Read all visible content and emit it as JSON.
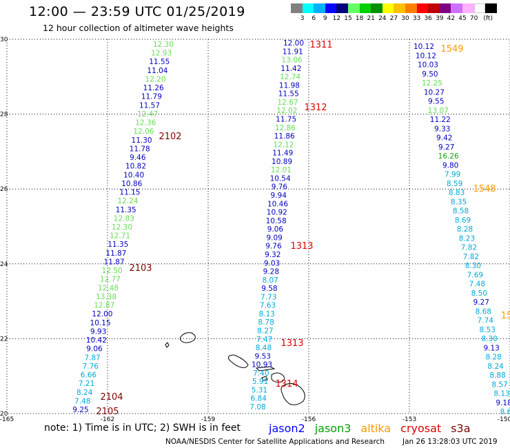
{
  "title": "12:00 — 23:59 UTC 01/25/2019",
  "subtitle": "12 hour collection of altimeter wave heights",
  "colorbar": {
    "colors": [
      "#808080",
      "#00ffff",
      "#00b0ff",
      "#0000ff",
      "#000080",
      "#66ff66",
      "#00d000",
      "#009000",
      "#ffff00",
      "#ffc000",
      "#ff8000",
      "#ff0000",
      "#c00000",
      "#800080",
      "#d070ff",
      "#ffb0ff",
      "#ffffff",
      "#000000"
    ],
    "labels": [
      "3",
      "6",
      "9",
      "12",
      "15",
      "18",
      "21",
      "24",
      "27",
      "30",
      "33",
      "36",
      "39",
      "42",
      "45",
      "70",
      "(ft)"
    ]
  },
  "axes": {
    "lon_ticks": [
      "-165",
      "-162",
      "-159",
      "-156",
      "-153",
      "-150"
    ],
    "lat_ticks": [
      "30",
      "28",
      "26",
      "24",
      "22",
      "20"
    ]
  },
  "level_colors": {
    "c1": "#00a8d8",
    "c2": "#0000c0",
    "c3": "#66dd55",
    "c4": "#10a010"
  },
  "tracks": [
    {
      "points": [
        [
          "12.30",
          "c3"
        ],
        [
          "12.93",
          "c3"
        ],
        [
          "11.55",
          "c2"
        ],
        [
          "11.04",
          "c2"
        ],
        [
          "12.20",
          "c3"
        ],
        [
          "11.26",
          "c2"
        ],
        [
          "11.79",
          "c2"
        ],
        [
          "11.57",
          "c2"
        ],
        [
          "12.47",
          "c3"
        ],
        [
          "12.36",
          "c3"
        ],
        [
          "12.06",
          "c3"
        ],
        [
          "11.30",
          "c2"
        ],
        [
          "11.78",
          "c2"
        ],
        [
          "9.46",
          "c2"
        ],
        [
          "10.82",
          "c2"
        ],
        [
          "10.40",
          "c2"
        ],
        [
          "10.86",
          "c2"
        ],
        [
          "11.15",
          "c2"
        ],
        [
          "12.24",
          "c3"
        ],
        [
          "11.35",
          "c2"
        ],
        [
          "12.83",
          "c3"
        ],
        [
          "12.30",
          "c3"
        ],
        [
          "12.71",
          "c3"
        ],
        [
          "11.35",
          "c2"
        ],
        [
          "11.87",
          "c2"
        ],
        [
          "11.87",
          "c2"
        ],
        [
          "12.50",
          "c3"
        ],
        [
          "12.77",
          "c3"
        ],
        [
          "12.48",
          "c3"
        ],
        [
          "13.38",
          "c3"
        ],
        [
          "12.87",
          "c3"
        ],
        [
          "12.00",
          "c2"
        ],
        [
          "10.15",
          "c2"
        ],
        [
          "9.93",
          "c2"
        ],
        [
          "10.42",
          "c2"
        ],
        [
          "9.06",
          "c2"
        ],
        [
          "7.87",
          "c1"
        ],
        [
          "7.76",
          "c1"
        ],
        [
          "6.66",
          "c1"
        ],
        [
          "7.21",
          "c1"
        ],
        [
          "8.24",
          "c1"
        ],
        [
          "7.48",
          "c1"
        ],
        [
          "9.25",
          "c2"
        ]
      ]
    },
    {
      "points": [
        [
          "12.00",
          "c2"
        ],
        [
          "11.91",
          "c2"
        ],
        [
          "13.06",
          "c3"
        ],
        [
          "11.42",
          "c2"
        ],
        [
          "12.74",
          "c3"
        ],
        [
          "11.98",
          "c2"
        ],
        [
          "11.55",
          "c2"
        ],
        [
          "12.67",
          "c3"
        ],
        [
          "12.02",
          "c3"
        ],
        [
          "11.75",
          "c2"
        ],
        [
          "12.86",
          "c3"
        ],
        [
          "11.86",
          "c2"
        ],
        [
          "12.12",
          "c3"
        ],
        [
          "11.49",
          "c2"
        ],
        [
          "10.89",
          "c2"
        ],
        [
          "12.01",
          "c3"
        ],
        [
          "10.54",
          "c2"
        ],
        [
          "9.76",
          "c2"
        ],
        [
          "9.94",
          "c2"
        ],
        [
          "10.46",
          "c2"
        ],
        [
          "10.92",
          "c2"
        ],
        [
          "10.58",
          "c2"
        ],
        [
          "9.06",
          "c2"
        ],
        [
          "9.09",
          "c2"
        ],
        [
          "9.76",
          "c2"
        ],
        [
          "9.32",
          "c2"
        ],
        [
          "9.03",
          "c2"
        ],
        [
          "9.28",
          "c2"
        ],
        [
          "8.07",
          "c1"
        ],
        [
          "9.58",
          "c2"
        ],
        [
          "7.73",
          "c1"
        ],
        [
          "7.63",
          "c1"
        ],
        [
          "8.13",
          "c1"
        ],
        [
          "8.78",
          "c1"
        ],
        [
          "8.27",
          "c1"
        ],
        [
          "7.47",
          "c1"
        ],
        [
          "8.48",
          "c1"
        ],
        [
          "9.53",
          "c2"
        ],
        [
          "10.93",
          "c2"
        ],
        [
          "7.40",
          "c1"
        ],
        [
          "5.91",
          "c1"
        ],
        [
          "5.31",
          "c1"
        ],
        [
          "6.84",
          "c1"
        ],
        [
          "7.08",
          "c1"
        ]
      ]
    },
    {
      "points": [
        [
          "10.12",
          "c2"
        ],
        [
          "10.12",
          "c2"
        ],
        [
          "10.03",
          "c2"
        ],
        [
          "9.50",
          "c2"
        ],
        [
          "12.25",
          "c3"
        ],
        [
          "10.27",
          "c2"
        ],
        [
          "9.55",
          "c2"
        ],
        [
          "13.07",
          "c3"
        ],
        [
          "11.22",
          "c2"
        ],
        [
          "9.33",
          "c2"
        ],
        [
          "9.42",
          "c2"
        ],
        [
          "9.27",
          "c2"
        ],
        [
          "16.26",
          "c4"
        ],
        [
          "9.80",
          "c2"
        ],
        [
          "7.99",
          "c1"
        ],
        [
          "8.59",
          "c1"
        ],
        [
          "8.83",
          "c1"
        ],
        [
          "8.35",
          "c1"
        ],
        [
          "8.58",
          "c1"
        ],
        [
          "8.69",
          "c1"
        ],
        [
          "8.28",
          "c1"
        ],
        [
          "8.23",
          "c1"
        ],
        [
          "7.82",
          "c1"
        ],
        [
          "7.82",
          "c1"
        ],
        [
          "8.30",
          "c1"
        ],
        [
          "7.69",
          "c1"
        ],
        [
          "7.48",
          "c1"
        ],
        [
          "8.50",
          "c1"
        ],
        [
          "9.27",
          "c2"
        ],
        [
          "8.68",
          "c1"
        ],
        [
          "7.74",
          "c1"
        ],
        [
          "8.53",
          "c1"
        ],
        [
          "8.30",
          "c1"
        ],
        [
          "9.13",
          "c2"
        ],
        [
          "8.28",
          "c1"
        ],
        [
          "8.24",
          "c1"
        ],
        [
          "8.88",
          "c1"
        ],
        [
          "8.57",
          "c1"
        ],
        [
          "8.13",
          "c1"
        ],
        [
          "9.18",
          "c2"
        ],
        [
          "8.6",
          "c1"
        ]
      ]
    }
  ],
  "pass_labels": [
    {
      "text": "1311",
      "color": "#e00000"
    },
    {
      "text": "1312",
      "color": "#e00000"
    },
    {
      "text": "1313",
      "color": "#e00000"
    },
    {
      "text": "1313",
      "color": "#e00000"
    },
    {
      "text": "1314",
      "color": "#e00000"
    },
    {
      "text": "2102",
      "color": "#800000"
    },
    {
      "text": "2103",
      "color": "#800000"
    },
    {
      "text": "2104",
      "color": "#800000"
    },
    {
      "text": "2105",
      "color": "#800000"
    },
    {
      "text": "1549",
      "color": "#ff9900"
    },
    {
      "text": "1548",
      "color": "#ff9900"
    },
    {
      "text": "15",
      "color": "#ff9900"
    }
  ],
  "note": "note: 1) Time is in UTC; 2) SWH is in feet",
  "legend": [
    {
      "label": "jason2",
      "color": "#0000ff"
    },
    {
      "label": "jason3",
      "color": "#00a000"
    },
    {
      "label": "altika",
      "color": "#ff9900"
    },
    {
      "label": "cryosat",
      "color": "#e00000"
    },
    {
      "label": "s3a",
      "color": "#800000"
    }
  ],
  "credit": "NOAA/NESDIS Center for Satellite Applications and Research",
  "timestamp": "Jan 26 13:28:03 UTC 2019"
}
